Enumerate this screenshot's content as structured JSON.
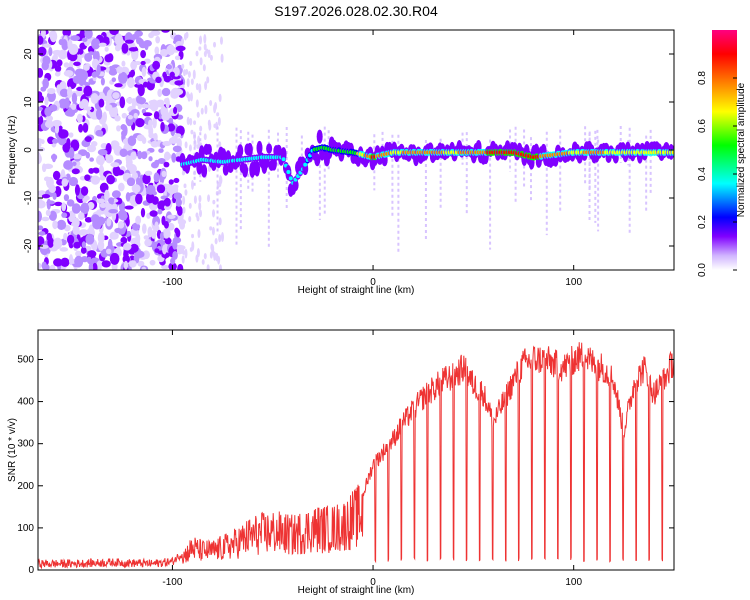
{
  "title": "S197.2026.028.02.30.R04",
  "chart_data": [
    {
      "type": "heatmap",
      "xlabel": "Height of straight line (km)",
      "ylabel": "Frequency (Hz)",
      "xlim": [
        -167,
        150
      ],
      "ylim": [
        -25,
        25
      ],
      "x_ticks": [
        -100,
        0,
        100
      ],
      "y_ticks": [
        -20,
        -10,
        0,
        10,
        20
      ],
      "colorbar": {
        "label": "Normalized spectral amplitude",
        "range": [
          0,
          1
        ],
        "ticks": [
          0.0,
          0.2,
          0.4,
          0.6,
          0.8
        ],
        "tick_labels": [
          "0.0",
          "0.2",
          "0.4",
          "0.6",
          "0.8"
        ],
        "colors": [
          "#ffffff",
          "#d0b4ff",
          "#8000ff",
          "#0000ff",
          "#00ffff",
          "#00ff00",
          "#ffff00",
          "#ff8000",
          "#ff0000",
          "#ff0080"
        ]
      },
      "ridge": {
        "x": [
          -95,
          -85,
          -75,
          -65,
          -55,
          -45,
          -40,
          -35,
          -30,
          -25,
          -20,
          -10,
          0,
          10,
          20,
          30,
          40,
          50,
          60,
          70,
          80,
          90,
          100,
          110,
          120,
          130,
          140,
          150
        ],
        "y": [
          -3,
          -2,
          -2.5,
          -2,
          -1.5,
          -1.5,
          -7,
          -4,
          0,
          0.5,
          0,
          -0.5,
          -1.5,
          -0.5,
          -0.5,
          -0.5,
          -0.5,
          -0.5,
          -0.5,
          -0.5,
          -1.5,
          -1,
          -0.5,
          -0.5,
          -0.5,
          -0.5,
          -0.5,
          -0.5
        ],
        "amplitude": [
          0.45,
          0.45,
          0.4,
          0.4,
          0.45,
          0.45,
          0.4,
          0.45,
          0.5,
          0.55,
          0.5,
          0.55,
          0.85,
          0.7,
          0.75,
          0.75,
          0.7,
          0.8,
          0.85,
          0.85,
          0.85,
          0.8,
          0.7,
          0.75,
          0.7,
          0.7,
          0.7,
          0.65
        ]
      }
    },
    {
      "type": "line",
      "xlabel": "Height of straight line (km)",
      "ylabel": "SNR (10 * v/v)",
      "xlim": [
        -167,
        150
      ],
      "ylim": [
        0,
        570
      ],
      "x_ticks": [
        -100,
        0,
        100
      ],
      "y_ticks": [
        0,
        100,
        200,
        300,
        400,
        500
      ],
      "color": "#ee3333",
      "series": [
        {
          "name": "SNR",
          "x": [
            -167,
            -150,
            -130,
            -110,
            -100,
            -95,
            -90,
            -85,
            -80,
            -70,
            -60,
            -50,
            -40,
            -30,
            -20,
            -15,
            -10,
            -5,
            0,
            5,
            10,
            15,
            20,
            25,
            30,
            35,
            40,
            45,
            50,
            55,
            60,
            65,
            70,
            75,
            80,
            85,
            90,
            95,
            100,
            105,
            110,
            115,
            120,
            125,
            130,
            135,
            140,
            145,
            150
          ],
          "y": [
            15,
            15,
            18,
            15,
            20,
            40,
            70,
            60,
            60,
            80,
            110,
            120,
            110,
            130,
            130,
            140,
            160,
            180,
            250,
            280,
            310,
            350,
            380,
            410,
            430,
            450,
            460,
            480,
            440,
            420,
            350,
            400,
            450,
            490,
            500,
            500,
            490,
            480,
            500,
            510,
            490,
            480,
            450,
            330,
            440,
            480,
            420,
            450,
            500
          ]
        }
      ]
    }
  ]
}
